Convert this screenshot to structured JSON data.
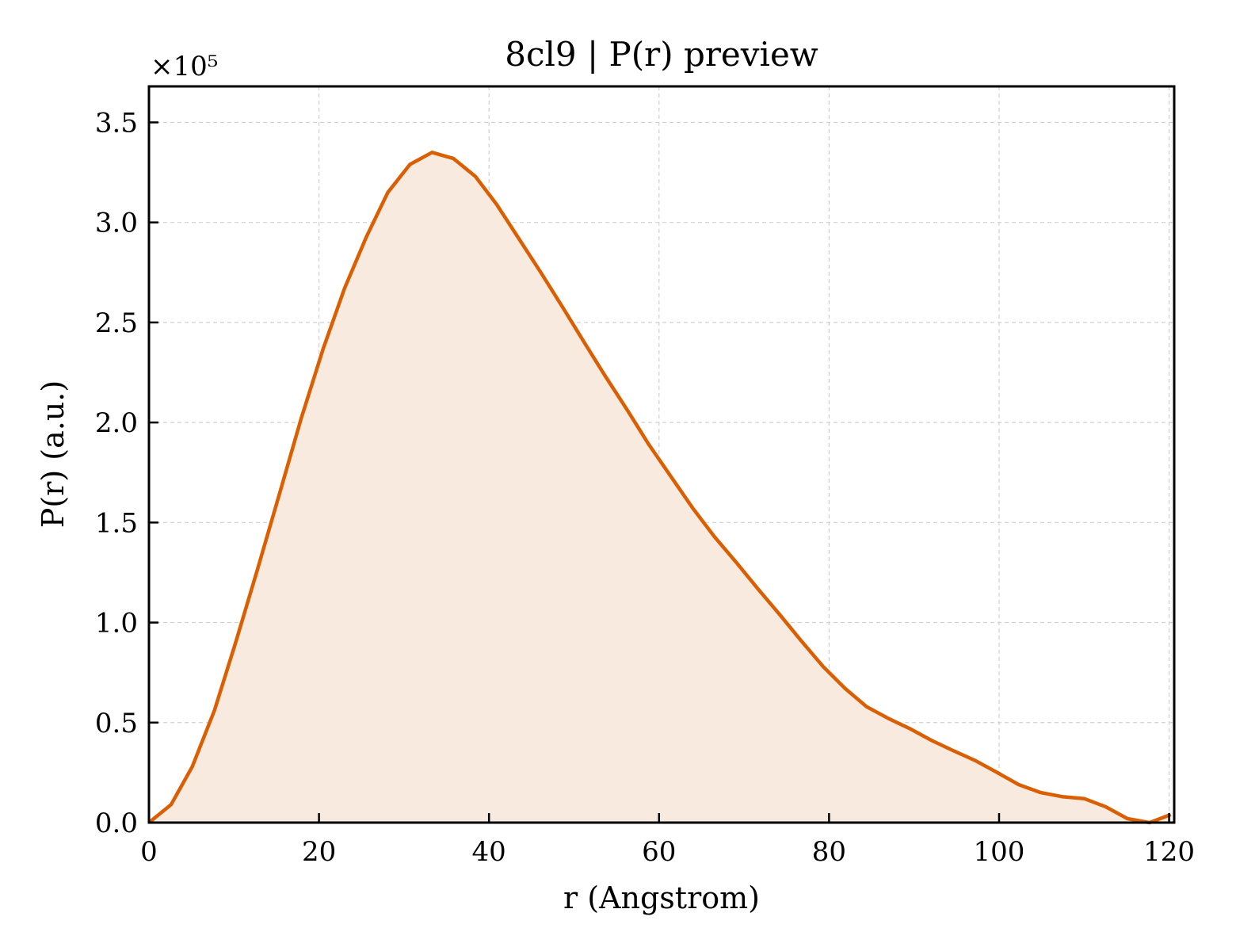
{
  "chart_data": {
    "type": "area",
    "title": "8cl9 | P(r) preview",
    "xlabel": "r (Angstrom)",
    "ylabel": "P(r) (a.u.)",
    "y_multiplier_label": "×10⁵",
    "xlim": [
      0,
      120.6
    ],
    "ylim": [
      0,
      3.68
    ],
    "xticks": [
      0,
      20,
      40,
      60,
      80,
      100,
      120
    ],
    "xtick_labels": [
      "0",
      "20",
      "40",
      "60",
      "80",
      "100",
      "120"
    ],
    "yticks": [
      0,
      0.5,
      1.0,
      1.5,
      2.0,
      2.5,
      3.0,
      3.5
    ],
    "ytick_labels": [
      "0.0",
      "0.5",
      "1.0",
      "1.5",
      "2.0",
      "2.5",
      "3.0",
      "3.5"
    ],
    "grid": true,
    "line_color": "#d95f02",
    "fill_color": "#f9eadf",
    "series": [
      {
        "x": [
          0,
          2.6,
          5.1,
          7.7,
          10.2,
          12.8,
          15.4,
          17.9,
          20.5,
          23.0,
          25.6,
          28.1,
          30.7,
          33.3,
          35.8,
          38.4,
          40.9,
          43.5,
          46.1,
          48.6,
          51.2,
          53.7,
          56.3,
          58.8,
          61.4,
          64.0,
          66.5,
          69.1,
          71.6,
          74.2,
          76.7,
          79.3,
          81.9,
          84.4,
          87.0,
          89.5,
          92.1,
          94.6,
          97.2,
          99.8,
          102.3,
          104.9,
          107.4,
          110.0,
          112.5,
          115.1,
          117.7,
          120.2
        ],
        "y": [
          0.0,
          0.09,
          0.28,
          0.56,
          0.9,
          1.27,
          1.65,
          2.02,
          2.37,
          2.67,
          2.93,
          3.15,
          3.29,
          3.35,
          3.32,
          3.23,
          3.09,
          2.92,
          2.75,
          2.58,
          2.4,
          2.23,
          2.06,
          1.89,
          1.73,
          1.57,
          1.43,
          1.3,
          1.17,
          1.04,
          0.91,
          0.78,
          0.67,
          0.58,
          0.52,
          0.47,
          0.41,
          0.36,
          0.31,
          0.25,
          0.19,
          0.15,
          0.13,
          0.12,
          0.08,
          0.02,
          0.0,
          0.04
        ]
      }
    ]
  }
}
